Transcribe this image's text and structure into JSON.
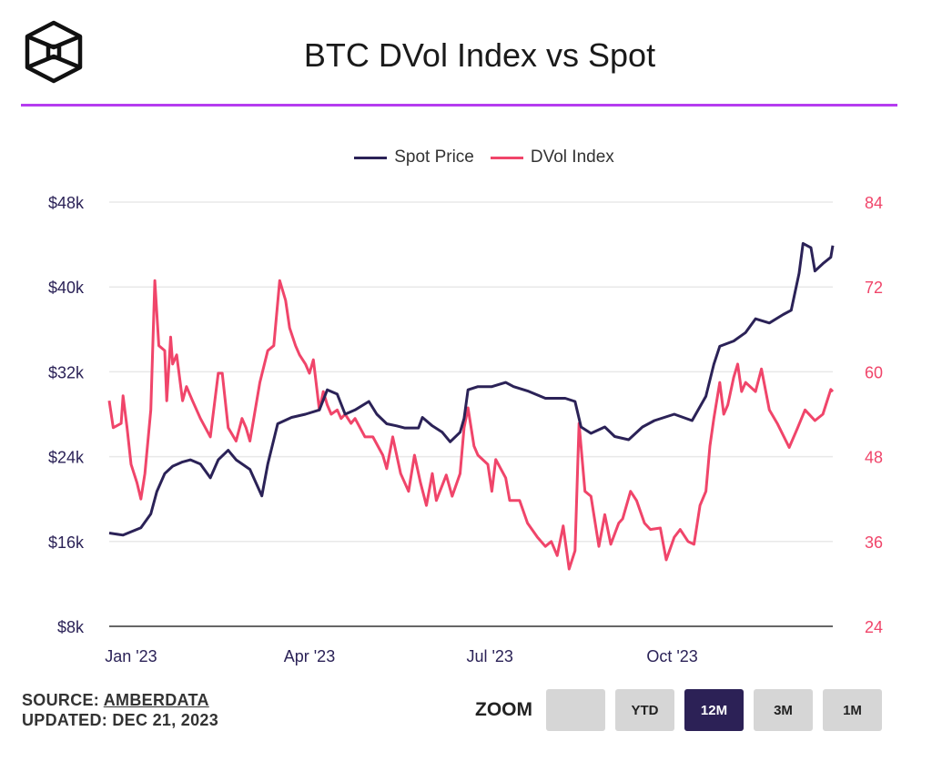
{
  "header": {
    "title": "BTC DVol Index vs Spot",
    "logo_icon": "hexagon-cube-logo"
  },
  "footer": {
    "source_prefix": "SOURCE: ",
    "source_link": "AMBERDATA",
    "updated": "UPDATED: DEC 21, 2023"
  },
  "zoom": {
    "label": "ZOOM",
    "buttons": [
      "",
      "YTD",
      "12M",
      "3M",
      "1M"
    ],
    "active": "12M"
  },
  "colors": {
    "spot": "#2b2257",
    "dvol": "#f0456a",
    "accent": "#b53cf0"
  },
  "chart_data": {
    "type": "line",
    "title": "BTC DVol Index vs Spot",
    "x_unit": "days since 2022-12-21",
    "xlim": [
      0,
      365
    ],
    "x_ticks": [
      {
        "day": 11,
        "label": "Jan '23"
      },
      {
        "day": 101,
        "label": "Apr '23"
      },
      {
        "day": 192,
        "label": "Jul '23"
      },
      {
        "day": 284,
        "label": "Oct '23"
      }
    ],
    "y_left": {
      "label": "Spot Price (USD)",
      "ylim": [
        8000,
        48000
      ],
      "ticks": [
        {
          "v": 8000,
          "label": "$8k"
        },
        {
          "v": 16000,
          "label": "$16k"
        },
        {
          "v": 24000,
          "label": "$24k"
        },
        {
          "v": 32000,
          "label": "$32k"
        },
        {
          "v": 40000,
          "label": "$40k"
        },
        {
          "v": 48000,
          "label": "$48k"
        }
      ]
    },
    "y_right": {
      "label": "DVol Index",
      "ylim": [
        24,
        84
      ],
      "ticks": [
        {
          "v": 24,
          "label": "24"
        },
        {
          "v": 36,
          "label": "36"
        },
        {
          "v": 48,
          "label": "48"
        },
        {
          "v": 60,
          "label": "60"
        },
        {
          "v": 72,
          "label": "72"
        },
        {
          "v": 84,
          "label": "84"
        }
      ]
    },
    "legend": {
      "position": "top-center"
    },
    "grid": true,
    "series": [
      {
        "name": "Spot Price",
        "axis": "left",
        "points": [
          [
            0,
            16800
          ],
          [
            7,
            16600
          ],
          [
            16,
            17300
          ],
          [
            21,
            18600
          ],
          [
            24,
            20700
          ],
          [
            28,
            22400
          ],
          [
            32,
            23100
          ],
          [
            37,
            23500
          ],
          [
            41,
            23700
          ],
          [
            46,
            23300
          ],
          [
            51,
            22000
          ],
          [
            55,
            23700
          ],
          [
            60,
            24600
          ],
          [
            64,
            23700
          ],
          [
            71,
            22800
          ],
          [
            77,
            20300
          ],
          [
            80,
            23300
          ],
          [
            85,
            27100
          ],
          [
            92,
            27700
          ],
          [
            99,
            28000
          ],
          [
            106,
            28400
          ],
          [
            110,
            30300
          ],
          [
            115,
            29900
          ],
          [
            119,
            28000
          ],
          [
            124,
            28400
          ],
          [
            131,
            29200
          ],
          [
            135,
            28000
          ],
          [
            140,
            27100
          ],
          [
            145,
            26900
          ],
          [
            149,
            26700
          ],
          [
            156,
            26700
          ],
          [
            158,
            27700
          ],
          [
            163,
            26900
          ],
          [
            168,
            26300
          ],
          [
            172,
            25400
          ],
          [
            177,
            26300
          ],
          [
            179,
            27600
          ],
          [
            181,
            30300
          ],
          [
            186,
            30600
          ],
          [
            193,
            30600
          ],
          [
            200,
            31000
          ],
          [
            204,
            30600
          ],
          [
            211,
            30200
          ],
          [
            220,
            29500
          ],
          [
            230,
            29500
          ],
          [
            235,
            29200
          ],
          [
            238,
            26800
          ],
          [
            243,
            26200
          ],
          [
            250,
            26800
          ],
          [
            255,
            25900
          ],
          [
            262,
            25600
          ],
          [
            269,
            26800
          ],
          [
            275,
            27400
          ],
          [
            285,
            28000
          ],
          [
            294,
            27400
          ],
          [
            301,
            29700
          ],
          [
            305,
            32700
          ],
          [
            308,
            34400
          ],
          [
            315,
            34900
          ],
          [
            321,
            35700
          ],
          [
            326,
            37000
          ],
          [
            333,
            36600
          ],
          [
            340,
            37400
          ],
          [
            344,
            37800
          ],
          [
            348,
            41300
          ],
          [
            350,
            44100
          ],
          [
            354,
            43700
          ],
          [
            356,
            41500
          ],
          [
            360,
            42200
          ],
          [
            364,
            42800
          ],
          [
            365,
            43900
          ]
        ]
      },
      {
        "name": "DVol Index",
        "axis": "right",
        "points": [
          [
            0,
            55.9
          ],
          [
            2,
            52.1
          ],
          [
            6,
            52.7
          ],
          [
            7,
            56.6
          ],
          [
            9,
            52.1
          ],
          [
            11,
            46.9
          ],
          [
            14,
            44.3
          ],
          [
            16,
            42.0
          ],
          [
            18,
            45.6
          ],
          [
            21,
            54.6
          ],
          [
            23,
            72.9
          ],
          [
            25,
            63.7
          ],
          [
            28,
            63.0
          ],
          [
            29,
            55.9
          ],
          [
            31,
            64.9
          ],
          [
            32,
            61.1
          ],
          [
            34,
            62.4
          ],
          [
            37,
            55.9
          ],
          [
            39,
            57.9
          ],
          [
            42,
            55.9
          ],
          [
            46,
            53.4
          ],
          [
            51,
            50.8
          ],
          [
            55,
            59.8
          ],
          [
            57,
            59.8
          ],
          [
            60,
            52.1
          ],
          [
            64,
            50.2
          ],
          [
            67,
            53.4
          ],
          [
            69,
            52.1
          ],
          [
            71,
            50.2
          ],
          [
            76,
            58.5
          ],
          [
            80,
            63.0
          ],
          [
            83,
            63.7
          ],
          [
            86,
            72.9
          ],
          [
            89,
            70.1
          ],
          [
            91,
            66.2
          ],
          [
            94,
            63.7
          ],
          [
            96,
            62.4
          ],
          [
            99,
            61.1
          ],
          [
            101,
            59.8
          ],
          [
            103,
            61.7
          ],
          [
            106,
            54.6
          ],
          [
            108,
            57.2
          ],
          [
            110,
            55.3
          ],
          [
            112,
            54.0
          ],
          [
            115,
            54.6
          ],
          [
            117,
            53.4
          ],
          [
            119,
            54.0
          ],
          [
            122,
            52.7
          ],
          [
            124,
            53.4
          ],
          [
            129,
            50.8
          ],
          [
            133,
            50.8
          ],
          [
            138,
            48.2
          ],
          [
            140,
            46.3
          ],
          [
            143,
            50.8
          ],
          [
            147,
            45.6
          ],
          [
            151,
            43.1
          ],
          [
            154,
            48.2
          ],
          [
            157,
            44.3
          ],
          [
            160,
            41.1
          ],
          [
            163,
            45.6
          ],
          [
            165,
            41.8
          ],
          [
            170,
            45.4
          ],
          [
            173,
            42.4
          ],
          [
            177,
            45.6
          ],
          [
            179,
            52.1
          ],
          [
            181,
            54.9
          ],
          [
            184,
            49.5
          ],
          [
            186,
            48.2
          ],
          [
            191,
            46.9
          ],
          [
            193,
            43.1
          ],
          [
            195,
            47.6
          ],
          [
            200,
            45.0
          ],
          [
            202,
            41.8
          ],
          [
            207,
            41.8
          ],
          [
            211,
            38.6
          ],
          [
            216,
            36.6
          ],
          [
            220,
            35.3
          ],
          [
            223,
            36.0
          ],
          [
            226,
            34.0
          ],
          [
            229,
            38.2
          ],
          [
            232,
            32.1
          ],
          [
            235,
            34.7
          ],
          [
            237,
            52.7
          ],
          [
            240,
            43.1
          ],
          [
            243,
            42.4
          ],
          [
            247,
            35.3
          ],
          [
            250,
            39.8
          ],
          [
            253,
            35.6
          ],
          [
            257,
            38.6
          ],
          [
            259,
            39.2
          ],
          [
            263,
            43.1
          ],
          [
            266,
            41.8
          ],
          [
            270,
            38.6
          ],
          [
            273,
            37.7
          ],
          [
            278,
            37.9
          ],
          [
            281,
            33.4
          ],
          [
            285,
            36.6
          ],
          [
            288,
            37.7
          ],
          [
            292,
            36.0
          ],
          [
            295,
            35.6
          ],
          [
            298,
            41.1
          ],
          [
            301,
            43.1
          ],
          [
            303,
            49.5
          ],
          [
            305,
            53.4
          ],
          [
            308,
            58.5
          ],
          [
            310,
            54.0
          ],
          [
            312,
            55.3
          ],
          [
            315,
            59.2
          ],
          [
            317,
            61.1
          ],
          [
            319,
            57.2
          ],
          [
            321,
            58.5
          ],
          [
            326,
            57.2
          ],
          [
            329,
            60.4
          ],
          [
            333,
            54.6
          ],
          [
            337,
            52.7
          ],
          [
            343,
            49.3
          ],
          [
            347,
            51.9
          ],
          [
            351,
            54.6
          ],
          [
            356,
            53.1
          ],
          [
            360,
            54.0
          ],
          [
            364,
            57.5
          ],
          [
            365,
            57.2
          ]
        ]
      }
    ]
  }
}
